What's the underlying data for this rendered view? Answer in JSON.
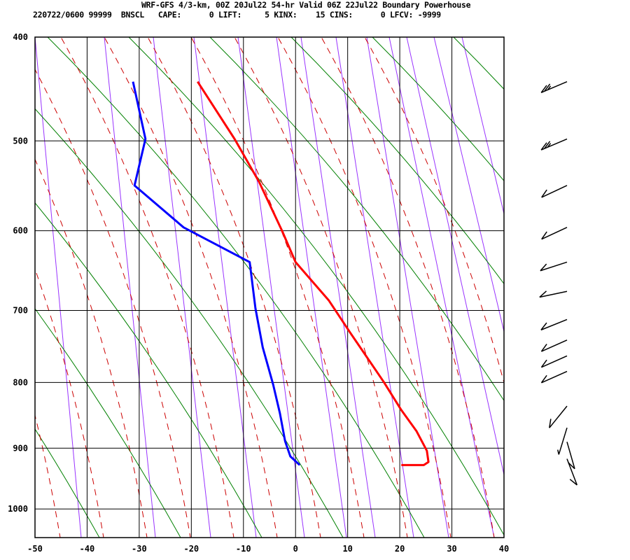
{
  "header": {
    "title": "WRF-GFS 4/3-km, 00Z 20Jul22 54-hr Valid 06Z 22Jul22 Boundary Powerhouse",
    "stats": "220722/0600 99999  BNSCL   CAPE:      0 LIFT:     5 KINX:    15 CINS:      0 LFCV: -9999"
  },
  "chart_data": {
    "type": "line",
    "subtype": "skew-t log-p sounding",
    "title": "WRF-GFS 4/3-km, 00Z 20Jul22 54-hr Valid 06Z 22Jul22 Boundary Powerhouse",
    "xlabel": "",
    "ylabel": "",
    "xlim": [
      -50,
      40
    ],
    "ylim": [
      1050,
      400
    ],
    "x_ticks": [
      "-50",
      "-40",
      "-30",
      "-20",
      "-10",
      "0",
      "10",
      "20",
      "30",
      "40"
    ],
    "y_ticks": [
      "400",
      "500",
      "600",
      "700",
      "800",
      "900",
      "1000"
    ],
    "grid": true,
    "series": [
      {
        "color": "#ff0000",
        "points": [
          [
            441,
            -18.8
          ],
          [
            498,
            -11.7
          ],
          [
            544,
            -7.0
          ],
          [
            600,
            -2.6
          ],
          [
            638,
            0.0
          ],
          [
            687,
            6.4
          ],
          [
            730,
            10.5
          ],
          [
            799,
            16.9
          ],
          [
            841,
            20.3
          ],
          [
            873,
            23.2
          ],
          [
            904,
            25.2
          ],
          [
            922,
            25.5
          ],
          [
            927,
            24.6
          ],
          [
            927,
            20.3
          ]
        ]
      },
      {
        "color": "#0000ff",
        "points": [
          [
            441,
            -31.2
          ],
          [
            498,
            -28.8
          ],
          [
            548,
            -30.9
          ],
          [
            596,
            -21.5
          ],
          [
            638,
            -8.8
          ],
          [
            697,
            -7.7
          ],
          [
            750,
            -6.3
          ],
          [
            803,
            -4.3
          ],
          [
            846,
            -3.0
          ],
          [
            889,
            -2.0
          ],
          [
            913,
            -1.0
          ],
          [
            927,
            0.8
          ]
        ]
      }
    ],
    "wind_barbs": [
      {
        "p": 441,
        "dir": 247,
        "kt": 25
      },
      {
        "p": 498,
        "dir": 247,
        "kt": 25
      },
      {
        "p": 548,
        "dir": 245,
        "kt": 10
      },
      {
        "p": 596,
        "dir": 245,
        "kt": 10
      },
      {
        "p": 638,
        "dir": 252,
        "kt": 10
      },
      {
        "p": 675,
        "dir": 258,
        "kt": 10
      },
      {
        "p": 712,
        "dir": 248,
        "kt": 10
      },
      {
        "p": 740,
        "dir": 246,
        "kt": 10
      },
      {
        "p": 762,
        "dir": 246,
        "kt": 10
      },
      {
        "p": 784,
        "dir": 246,
        "kt": 10
      },
      {
        "p": 835,
        "dir": 219,
        "kt": 10
      },
      {
        "p": 868,
        "dir": 197,
        "kt": 5
      },
      {
        "p": 890,
        "dir": 164,
        "kt": 10
      },
      {
        "p": 917,
        "dir": 159,
        "kt": 10
      }
    ],
    "colors": {
      "isotherm_grid": "#000000",
      "dry_adiabat": "#008000",
      "moist_adiabat": "#cc0000",
      "mixing_ratio": "#9933ff",
      "barb": "#000000"
    }
  }
}
